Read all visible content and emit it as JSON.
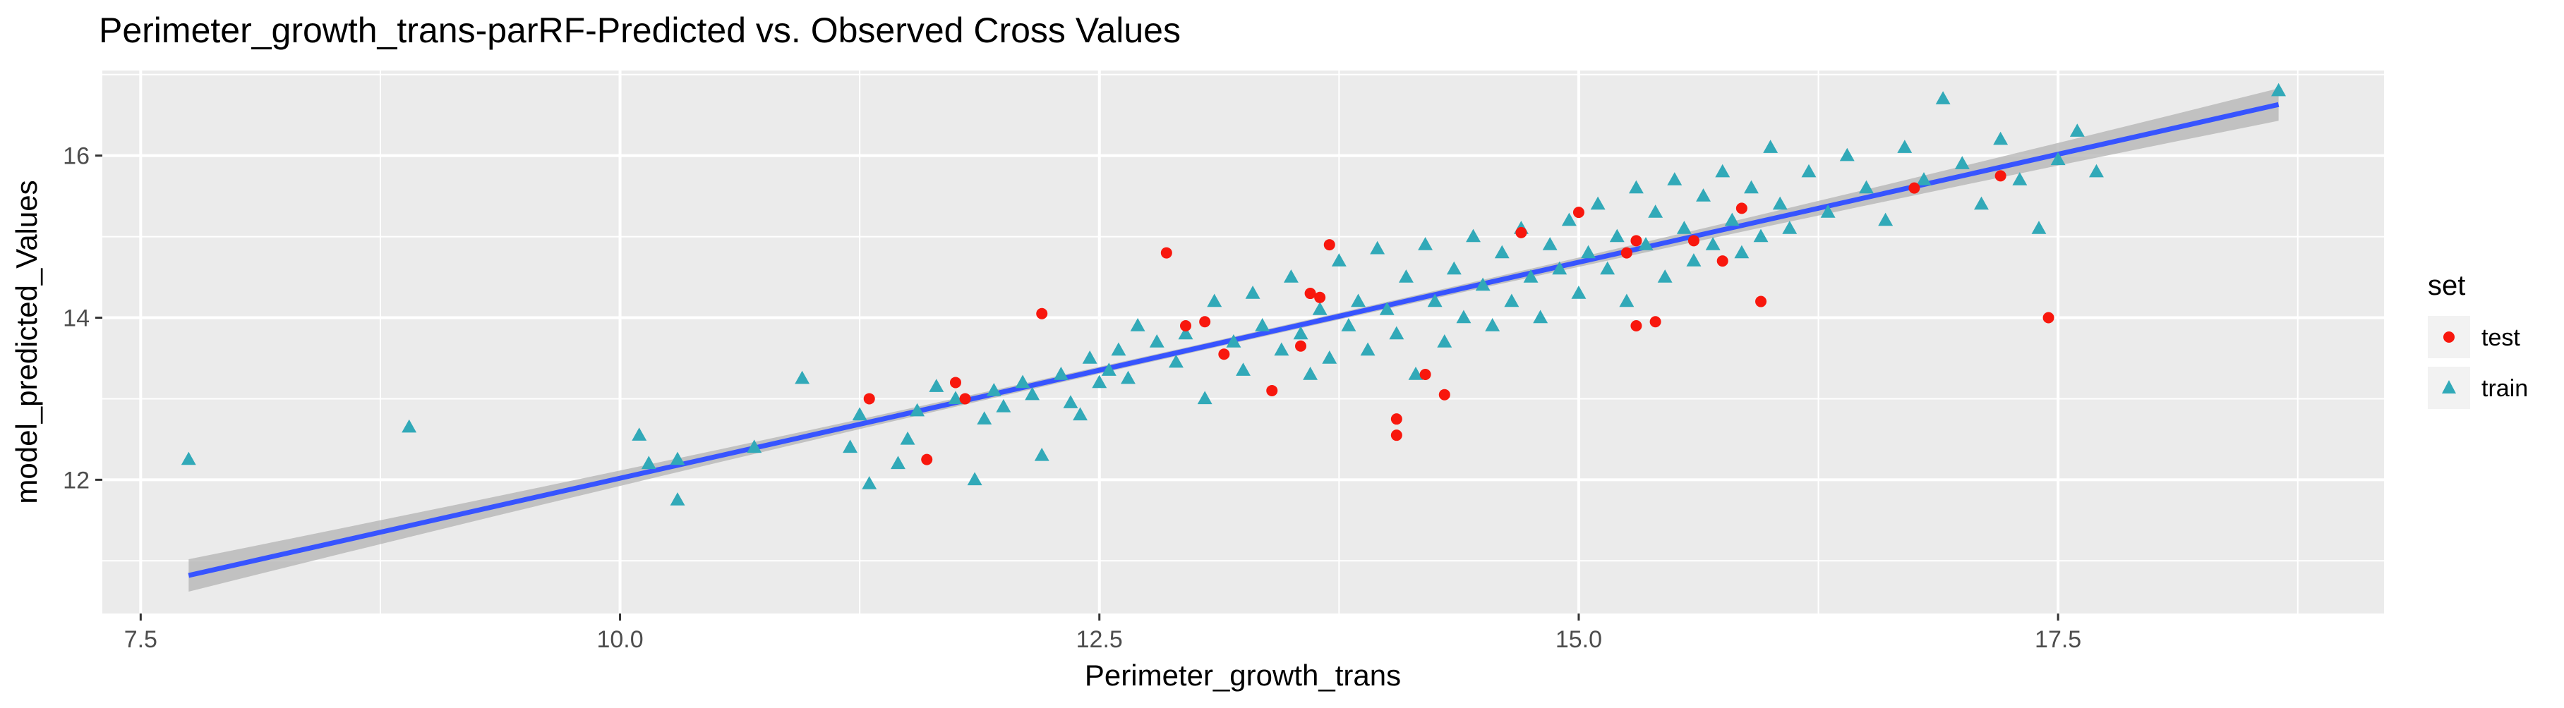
{
  "chart_data": {
    "type": "scatter",
    "title": "Perimeter_growth_trans-parRF-Predicted vs. Observed Cross Values",
    "xlabel": "Perimeter_growth_trans",
    "ylabel": "model_predicted_Values",
    "xlim": [
      7.3,
      19.2
    ],
    "ylim": [
      10.35,
      17.05
    ],
    "x_ticks": [
      7.5,
      10.0,
      12.5,
      15.0,
      17.5
    ],
    "x_tick_labels": [
      "7.5",
      "10.0",
      "12.5",
      "15.0",
      "17.5"
    ],
    "y_ticks": [
      12,
      14,
      16
    ],
    "y_tick_labels": [
      "12",
      "14",
      "16"
    ],
    "grid": true,
    "legend": {
      "title": "set",
      "position": "right",
      "entries": [
        {
          "label": "test",
          "shape": "circle",
          "color": "#f8170d"
        },
        {
          "label": "train",
          "shape": "triangle",
          "color": "#31a9b8"
        }
      ]
    },
    "trend_line": {
      "method": "linear",
      "start": [
        7.75,
        10.82
      ],
      "end": [
        18.65,
        16.63
      ],
      "ci_halfwidth_ends": 0.2,
      "ci_halfwidth_mid": 0.04,
      "color": "#3754ff",
      "ci_color": "#b3b3b3"
    },
    "series": [
      {
        "name": "test",
        "shape": "circle",
        "color": "#f8170d",
        "points": [
          [
            11.3,
            13.0
          ],
          [
            11.6,
            12.25
          ],
          [
            11.75,
            13.2
          ],
          [
            11.8,
            13.0
          ],
          [
            12.2,
            14.05
          ],
          [
            12.85,
            14.8
          ],
          [
            12.95,
            13.9
          ],
          [
            13.05,
            13.95
          ],
          [
            13.15,
            13.55
          ],
          [
            13.4,
            13.1
          ],
          [
            13.55,
            13.65
          ],
          [
            13.6,
            14.3
          ],
          [
            13.65,
            14.25
          ],
          [
            13.7,
            14.9
          ],
          [
            14.05,
            12.75
          ],
          [
            14.05,
            12.55
          ],
          [
            14.2,
            13.3
          ],
          [
            14.3,
            13.05
          ],
          [
            14.7,
            15.05
          ],
          [
            15.0,
            15.3
          ],
          [
            15.25,
            14.8
          ],
          [
            15.3,
            14.95
          ],
          [
            15.3,
            13.9
          ],
          [
            15.4,
            13.95
          ],
          [
            15.6,
            14.95
          ],
          [
            15.75,
            14.7
          ],
          [
            15.85,
            15.35
          ],
          [
            15.95,
            14.2
          ],
          [
            16.75,
            15.6
          ],
          [
            17.2,
            15.75
          ],
          [
            17.45,
            14.0
          ]
        ]
      },
      {
        "name": "train",
        "shape": "triangle",
        "color": "#31a9b8",
        "points": [
          [
            7.75,
            12.25
          ],
          [
            8.9,
            12.65
          ],
          [
            10.1,
            12.55
          ],
          [
            10.15,
            12.2
          ],
          [
            10.3,
            12.25
          ],
          [
            10.3,
            11.75
          ],
          [
            10.7,
            12.4
          ],
          [
            10.95,
            13.25
          ],
          [
            11.2,
            12.4
          ],
          [
            11.25,
            12.8
          ],
          [
            11.3,
            11.95
          ],
          [
            11.45,
            12.2
          ],
          [
            11.5,
            12.5
          ],
          [
            11.55,
            12.85
          ],
          [
            11.65,
            13.15
          ],
          [
            11.75,
            13.0
          ],
          [
            11.85,
            12.0
          ],
          [
            11.9,
            12.75
          ],
          [
            11.95,
            13.1
          ],
          [
            12.0,
            12.9
          ],
          [
            12.1,
            13.2
          ],
          [
            12.15,
            13.05
          ],
          [
            12.2,
            12.3
          ],
          [
            12.3,
            13.3
          ],
          [
            12.35,
            12.95
          ],
          [
            12.4,
            12.8
          ],
          [
            12.45,
            13.5
          ],
          [
            12.5,
            13.2
          ],
          [
            12.55,
            13.35
          ],
          [
            12.6,
            13.6
          ],
          [
            12.65,
            13.25
          ],
          [
            12.7,
            13.9
          ],
          [
            12.8,
            13.7
          ],
          [
            12.9,
            13.45
          ],
          [
            12.95,
            13.8
          ],
          [
            13.05,
            13.0
          ],
          [
            13.1,
            14.2
          ],
          [
            13.2,
            13.7
          ],
          [
            13.25,
            13.35
          ],
          [
            13.3,
            14.3
          ],
          [
            13.35,
            13.9
          ],
          [
            13.45,
            13.6
          ],
          [
            13.5,
            14.5
          ],
          [
            13.55,
            13.8
          ],
          [
            13.6,
            13.3
          ],
          [
            13.65,
            14.1
          ],
          [
            13.7,
            13.5
          ],
          [
            13.75,
            14.7
          ],
          [
            13.8,
            13.9
          ],
          [
            13.85,
            14.2
          ],
          [
            13.9,
            13.6
          ],
          [
            13.95,
            14.85
          ],
          [
            14.0,
            14.1
          ],
          [
            14.05,
            13.8
          ],
          [
            14.1,
            14.5
          ],
          [
            14.15,
            13.3
          ],
          [
            14.2,
            14.9
          ],
          [
            14.25,
            14.2
          ],
          [
            14.3,
            13.7
          ],
          [
            14.35,
            14.6
          ],
          [
            14.4,
            14.0
          ],
          [
            14.45,
            15.0
          ],
          [
            14.5,
            14.4
          ],
          [
            14.55,
            13.9
          ],
          [
            14.6,
            14.8
          ],
          [
            14.65,
            14.2
          ],
          [
            14.7,
            15.1
          ],
          [
            14.75,
            14.5
          ],
          [
            14.8,
            14.0
          ],
          [
            14.85,
            14.9
          ],
          [
            14.9,
            14.6
          ],
          [
            14.95,
            15.2
          ],
          [
            15.0,
            14.3
          ],
          [
            15.05,
            14.8
          ],
          [
            15.1,
            15.4
          ],
          [
            15.15,
            14.6
          ],
          [
            15.2,
            15.0
          ],
          [
            15.25,
            14.2
          ],
          [
            15.3,
            15.6
          ],
          [
            15.35,
            14.9
          ],
          [
            15.4,
            15.3
          ],
          [
            15.45,
            14.5
          ],
          [
            15.5,
            15.7
          ],
          [
            15.55,
            15.1
          ],
          [
            15.6,
            14.7
          ],
          [
            15.65,
            15.5
          ],
          [
            15.7,
            14.9
          ],
          [
            15.75,
            15.8
          ],
          [
            15.8,
            15.2
          ],
          [
            15.85,
            14.8
          ],
          [
            15.9,
            15.6
          ],
          [
            15.95,
            15.0
          ],
          [
            16.0,
            16.1
          ],
          [
            16.05,
            15.4
          ],
          [
            16.1,
            15.1
          ],
          [
            16.2,
            15.8
          ],
          [
            16.3,
            15.3
          ],
          [
            16.4,
            16.0
          ],
          [
            16.5,
            15.6
          ],
          [
            16.6,
            15.2
          ],
          [
            16.7,
            16.1
          ],
          [
            16.8,
            15.7
          ],
          [
            16.9,
            16.7
          ],
          [
            17.0,
            15.9
          ],
          [
            17.1,
            15.4
          ],
          [
            17.2,
            16.2
          ],
          [
            17.3,
            15.7
          ],
          [
            17.4,
            15.1
          ],
          [
            17.5,
            15.95
          ],
          [
            17.6,
            16.3
          ],
          [
            17.7,
            15.8
          ],
          [
            18.65,
            16.8
          ]
        ]
      }
    ]
  }
}
